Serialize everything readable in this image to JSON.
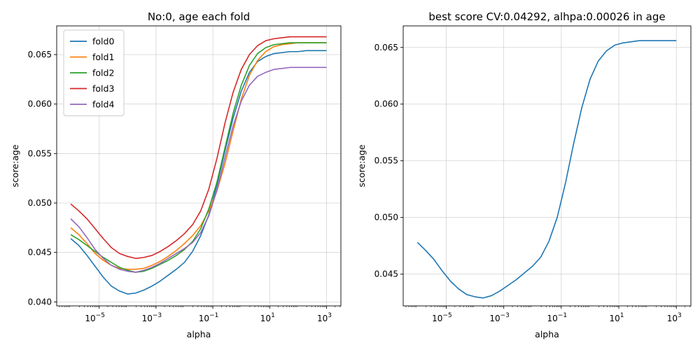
{
  "chart_data": [
    {
      "type": "line",
      "title": "No:0, age each fold",
      "xlabel": "alpha",
      "ylabel": "score:age",
      "xscale": "log",
      "xlim": [
        3.2e-07,
        3200
      ],
      "ylim": [
        0.0396,
        0.0679
      ],
      "xticks": [
        1e-05,
        0.001,
        0.1,
        10,
        1000
      ],
      "xtick_labels": [
        {
          "base": "10",
          "exp": "−5"
        },
        {
          "base": "10",
          "exp": "−3"
        },
        {
          "base": "10",
          "exp": "−1"
        },
        {
          "base": "10",
          "exp": "1"
        },
        {
          "base": "10",
          "exp": "3"
        }
      ],
      "yticks": [
        0.04,
        0.045,
        0.05,
        0.055,
        0.06,
        0.065
      ],
      "ytick_labels": [
        "0.040",
        "0.045",
        "0.050",
        "0.055",
        "0.060",
        "0.065"
      ],
      "grid": true,
      "legend": "top-left",
      "x": [
        1e-06,
        1.93e-06,
        3.73e-06,
        7.2e-06,
        1.39e-05,
        2.68e-05,
        5.18e-05,
        0.0001,
        0.000193,
        0.000373,
        0.00072,
        0.00139,
        0.00268,
        0.00518,
        0.01,
        0.0193,
        0.0373,
        0.072,
        0.139,
        0.268,
        0.518,
        1,
        1.93,
        3.73,
        7.2,
        13.9,
        26.8,
        51.8,
        100,
        193,
        373,
        720,
        1000
      ],
      "series": [
        {
          "name": "fold0",
          "color": "#1f77b4",
          "values": [
            0.0464,
            0.0457,
            0.0447,
            0.0436,
            0.0425,
            0.0416,
            0.0411,
            0.0408,
            0.0409,
            0.0412,
            0.0416,
            0.0421,
            0.0427,
            0.0433,
            0.044,
            0.0451,
            0.0467,
            0.0488,
            0.0518,
            0.0553,
            0.0586,
            0.0613,
            0.0632,
            0.0643,
            0.0648,
            0.0651,
            0.0652,
            0.0653,
            0.0653,
            0.0654,
            0.0654,
            0.0654,
            0.0654
          ]
        },
        {
          "name": "fold1",
          "color": "#ff7f0e",
          "values": [
            0.0475,
            0.0468,
            0.0459,
            0.0449,
            0.0442,
            0.0437,
            0.0434,
            0.0433,
            0.0433,
            0.0434,
            0.0437,
            0.0441,
            0.0446,
            0.0452,
            0.0459,
            0.0467,
            0.0477,
            0.0492,
            0.0512,
            0.054,
            0.0573,
            0.0605,
            0.0629,
            0.0644,
            0.0653,
            0.0658,
            0.066,
            0.0661,
            0.0662,
            0.0662,
            0.0662,
            0.0662,
            0.0662
          ]
        },
        {
          "name": "fold2",
          "color": "#2ca02c",
          "values": [
            0.0468,
            0.0463,
            0.0457,
            0.0451,
            0.0445,
            0.044,
            0.0435,
            0.0432,
            0.043,
            0.0431,
            0.0434,
            0.0438,
            0.0442,
            0.0447,
            0.0453,
            0.0461,
            0.0474,
            0.0494,
            0.0521,
            0.0556,
            0.0591,
            0.0619,
            0.0639,
            0.0651,
            0.0657,
            0.066,
            0.0661,
            0.0662,
            0.0662,
            0.0662,
            0.0662,
            0.0662,
            0.0662
          ]
        },
        {
          "name": "fold3",
          "color": "#d62728",
          "values": [
            0.0499,
            0.0492,
            0.0484,
            0.0474,
            0.0464,
            0.0455,
            0.0449,
            0.0446,
            0.0444,
            0.0445,
            0.0447,
            0.0451,
            0.0456,
            0.0462,
            0.0469,
            0.0478,
            0.0492,
            0.0514,
            0.0545,
            0.0581,
            0.0612,
            0.0635,
            0.065,
            0.0659,
            0.0664,
            0.0666,
            0.0667,
            0.0668,
            0.0668,
            0.0668,
            0.0668,
            0.0668,
            0.0668
          ]
        },
        {
          "name": "fold4",
          "color": "#9467bd",
          "values": [
            0.0484,
            0.0476,
            0.0465,
            0.0453,
            0.0444,
            0.0437,
            0.0433,
            0.0431,
            0.043,
            0.0432,
            0.0435,
            0.0439,
            0.0444,
            0.0449,
            0.0454,
            0.046,
            0.047,
            0.0487,
            0.0513,
            0.0546,
            0.0578,
            0.0603,
            0.0619,
            0.0628,
            0.0632,
            0.0635,
            0.0636,
            0.0637,
            0.0637,
            0.0637,
            0.0637,
            0.0637,
            0.0637
          ]
        }
      ]
    },
    {
      "type": "line",
      "title": "best score CV:0.04292, alhpa:0.00026 in age",
      "xlabel": "alpha",
      "ylabel": "score:age",
      "xscale": "log",
      "xlim": [
        3.2e-07,
        3200
      ],
      "ylim": [
        0.0422,
        0.0669
      ],
      "xticks": [
        1e-05,
        0.001,
        0.1,
        10,
        1000
      ],
      "xtick_labels": [
        {
          "base": "10",
          "exp": "−5"
        },
        {
          "base": "10",
          "exp": "−3"
        },
        {
          "base": "10",
          "exp": "−1"
        },
        {
          "base": "10",
          "exp": "1"
        },
        {
          "base": "10",
          "exp": "3"
        }
      ],
      "yticks": [
        0.045,
        0.05,
        0.055,
        0.06,
        0.065
      ],
      "ytick_labels": [
        "0.045",
        "0.050",
        "0.055",
        "0.060",
        "0.065"
      ],
      "grid": true,
      "x": [
        1e-06,
        1.93e-06,
        3.73e-06,
        7.2e-06,
        1.39e-05,
        2.68e-05,
        5.18e-05,
        0.0001,
        0.000193,
        0.000373,
        0.00072,
        0.00139,
        0.00268,
        0.00518,
        0.01,
        0.0193,
        0.0373,
        0.072,
        0.139,
        0.268,
        0.518,
        1,
        1.93,
        3.73,
        7.2,
        13.9,
        26.8,
        51.8,
        100,
        193,
        373,
        720,
        1000
      ],
      "series": [
        {
          "color": "#1f77b4",
          "values": [
            0.0478,
            0.0471,
            0.0463,
            0.0453,
            0.0444,
            0.0437,
            0.0432,
            0.043,
            0.0429,
            0.0431,
            0.0435,
            0.044,
            0.0445,
            0.0451,
            0.0457,
            0.0465,
            0.0479,
            0.05,
            0.053,
            0.0565,
            0.0597,
            0.0622,
            0.0638,
            0.0647,
            0.0652,
            0.0654,
            0.0655,
            0.0656,
            0.0656,
            0.0656,
            0.0656,
            0.0656,
            0.0656
          ]
        }
      ]
    }
  ]
}
